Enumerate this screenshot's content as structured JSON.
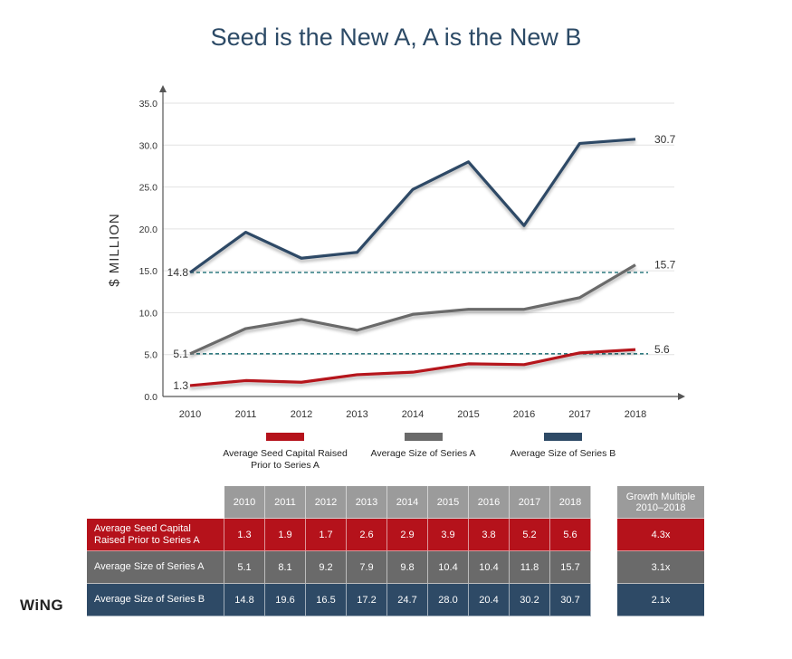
{
  "title": "Seed is the New A, A is the New B",
  "logo_text": "WiNG",
  "colors": {
    "seed": "#b5121b",
    "seriesA": "#6a6a6a",
    "seriesB": "#2e4a66",
    "dashed": "#2f7a80",
    "header": "#9b9b9b"
  },
  "chart_data": {
    "type": "line",
    "title": "Seed is the New A, A is the New B",
    "xlabel": "",
    "ylabel": "$ MILLION",
    "ylim": [
      0,
      35
    ],
    "yticks": [
      "0.0",
      "5.0",
      "10.0",
      "15.0",
      "20.0",
      "25.0",
      "30.0",
      "35.0"
    ],
    "categories": [
      "2010",
      "2011",
      "2012",
      "2013",
      "2014",
      "2015",
      "2016",
      "2017",
      "2018"
    ],
    "series": [
      {
        "name": "Average Seed Capital Raised Prior to Series A",
        "values": [
          1.3,
          1.9,
          1.7,
          2.6,
          2.9,
          3.9,
          3.8,
          5.2,
          5.6
        ]
      },
      {
        "name": "Average Size of Series A",
        "values": [
          5.1,
          8.1,
          9.2,
          7.9,
          9.8,
          10.4,
          10.4,
          11.8,
          15.7
        ]
      },
      {
        "name": "Average Size of Series B",
        "values": [
          14.8,
          19.6,
          16.5,
          17.2,
          24.7,
          28.0,
          20.4,
          30.2,
          30.7
        ]
      }
    ],
    "annotations": {
      "start_labels": [
        "1.3",
        "5.1",
        "14.8"
      ],
      "end_labels": [
        "5.6",
        "15.7",
        "30.7"
      ],
      "reference_lines": [
        5.1,
        14.8
      ]
    },
    "legend": "bottom",
    "grid": true
  },
  "legend": [
    {
      "label": "Average Seed Capital Raised Prior to Series A"
    },
    {
      "label": "Average Size of Series A"
    },
    {
      "label": "Average Size of Series B"
    }
  ],
  "table": {
    "years": [
      "2010",
      "2011",
      "2012",
      "2013",
      "2014",
      "2015",
      "2016",
      "2017",
      "2018"
    ],
    "rows": [
      {
        "label": "Average Seed Capital Raised Prior to Series A",
        "values": [
          "1.3",
          "1.9",
          "1.7",
          "2.6",
          "2.9",
          "3.9",
          "3.8",
          "5.2",
          "5.6"
        ],
        "growth": "4.3x"
      },
      {
        "label": "Average Size of Series A",
        "values": [
          "5.1",
          "8.1",
          "9.2",
          "7.9",
          "9.8",
          "10.4",
          "10.4",
          "11.8",
          "15.7"
        ],
        "growth": "3.1x"
      },
      {
        "label": "Average Size of Series B",
        "values": [
          "14.8",
          "19.6",
          "16.5",
          "17.2",
          "24.7",
          "28.0",
          "20.4",
          "30.2",
          "30.7"
        ],
        "growth": "2.1x"
      }
    ],
    "growth_header_line1": "Growth Multiple",
    "growth_header_line2": "2010–2018"
  }
}
